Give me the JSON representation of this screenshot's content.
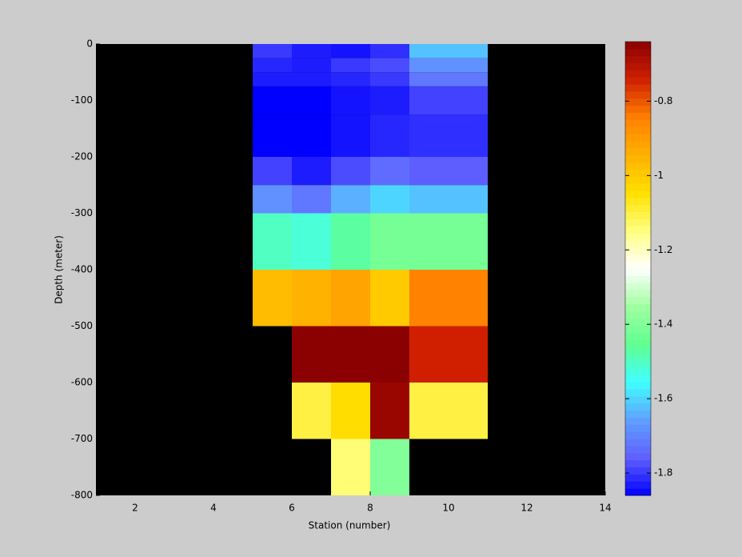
{
  "chart_data": {
    "type": "heatmap",
    "x_label": "Station (number)",
    "y_label": "Depth (meter)",
    "x_edges": [
      5,
      6,
      7,
      8,
      9,
      11
    ],
    "y_edges": [
      0,
      -25,
      -50,
      -75,
      -125,
      -200,
      -250,
      -300,
      -400,
      -500,
      -600,
      -700,
      -800
    ],
    "values": [
      [
        -1.8,
        -1.83,
        -1.84,
        -1.81,
        -1.62
      ],
      [
        -1.82,
        -1.83,
        -1.8,
        -1.78,
        -1.68
      ],
      [
        -1.83,
        -1.83,
        -1.82,
        -1.8,
        -1.72
      ],
      [
        -1.86,
        -1.86,
        -1.84,
        -1.83,
        -1.79
      ],
      [
        -1.86,
        -1.86,
        -1.84,
        -1.82,
        -1.81
      ],
      [
        -1.79,
        -1.83,
        -1.78,
        -1.74,
        -1.76
      ],
      [
        -1.68,
        -1.72,
        -1.64,
        -1.6,
        -1.62
      ],
      [
        -1.5,
        -1.52,
        -1.47,
        -1.42,
        -1.42
      ],
      [
        -0.97,
        -0.95,
        -0.92,
        -1.0,
        -0.85
      ],
      [
        null,
        -0.64,
        -0.64,
        -0.64,
        -0.74
      ],
      [
        null,
        -1.1,
        -1.04,
        -0.66,
        -1.1
      ],
      [
        null,
        null,
        -1.14,
        -1.4,
        null
      ]
    ],
    "xlim": [
      1,
      14
    ],
    "xticks": [
      2,
      4,
      6,
      8,
      10,
      12,
      14
    ],
    "ylim": [
      -800,
      0
    ],
    "yticks": [
      0,
      -100,
      -200,
      -300,
      -400,
      -500,
      -600,
      -700,
      -800
    ],
    "clim": [
      -1.86,
      -0.64
    ],
    "cticks": [
      -0.8,
      -1,
      -1.2,
      -1.4,
      -1.6,
      -1.8
    ],
    "colormap": [
      "#0000ff",
      "#6060ff",
      "#60a0ff",
      "#40ffff",
      "#60ff90",
      "#a0ffa0",
      "#ffffff",
      "#ffff80",
      "#ffe000",
      "#ffb000",
      "#ff8000",
      "#d02000",
      "#8b0000"
    ],
    "missing_color": "#000000"
  }
}
